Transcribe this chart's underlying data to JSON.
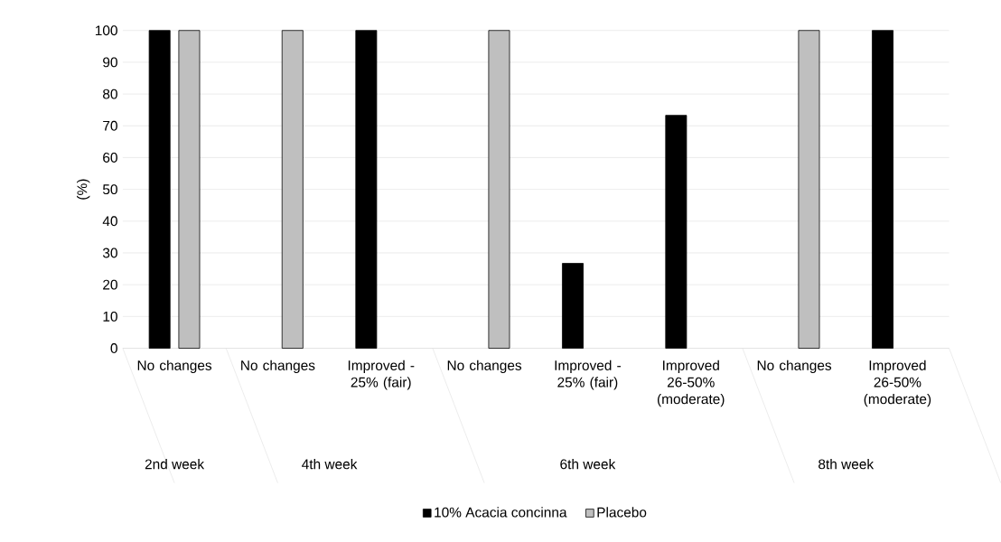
{
  "chart_data": {
    "type": "bar",
    "ylabel": "(%)",
    "categories": [
      "No changes",
      "No changes",
      "Improved - 25% (fair)",
      "No changes",
      "Improved - 25% (fair)",
      "Improved 26-50% (moderate)",
      "No changes",
      "Improved 26-50% (moderate)"
    ],
    "series": [
      {
        "name": "10% Acacia concinna",
        "color": "#000000",
        "values": [
          100,
          null,
          100,
          null,
          26.7,
          73.3,
          null,
          100
        ]
      },
      {
        "name": "Placebo",
        "color": "#bfbfbf",
        "values": [
          100,
          100,
          null,
          100,
          null,
          null,
          100,
          null
        ]
      }
    ],
    "ylim": [
      0,
      100
    ],
    "yticks": [
      0,
      10,
      20,
      30,
      40,
      50,
      60,
      70,
      80,
      90,
      100
    ],
    "grid": "y",
    "legend": "bottom",
    "annotations": [
      "2nd week",
      "4th week",
      "6th week",
      "8th week"
    ]
  }
}
